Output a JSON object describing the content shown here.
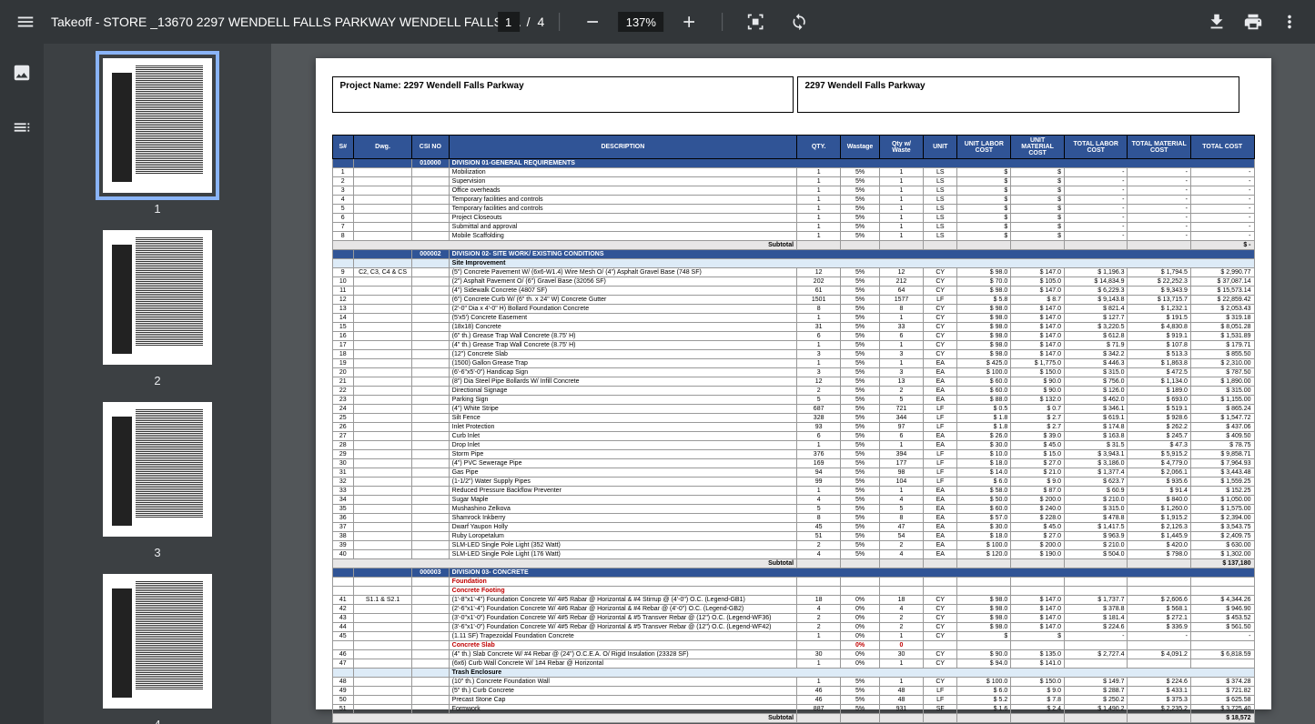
{
  "toolbar": {
    "title": "Takeoff - STORE _13670 2297 WENDELL FALLS PARKWAY WENDELL FALLS_…",
    "page_current": "1",
    "page_sep": "/",
    "page_total": "4",
    "zoom": "137%"
  },
  "thumbs": [
    {
      "num": "1",
      "selected": true
    },
    {
      "num": "2",
      "selected": false
    },
    {
      "num": "3",
      "selected": false
    },
    {
      "num": "4",
      "selected": false
    }
  ],
  "doc": {
    "project_label": "Project Name: 2297 Wendell Falls Parkway",
    "project_header": "2297 Wendell Falls Parkway",
    "headers": [
      "S#",
      "Dwg.",
      "CSI NO",
      "DESCRIPTION",
      "QTY.",
      "Wastage",
      "Qty w/ Waste",
      "UNIT",
      "UNIT LABOR COST",
      "UNIT MATERIAL COST",
      "TOTAL LABOR COST",
      "TOTAL MATERIAL COST",
      "TOTAL COST"
    ],
    "colors": {
      "header_bg": "#305496",
      "header_fg": "#ffffff",
      "sub_bg": "#ddebf7",
      "subtotal_bg": "#e7e6e6",
      "red_fg": "#c00000"
    },
    "sections": [
      {
        "type": "section",
        "csi": "010000",
        "desc": "DIVISION 01-GENERAL REQUIREMENTS"
      },
      {
        "type": "row",
        "s": "1",
        "dwg": "",
        "csi": "",
        "desc": "Mobilization",
        "qty": "1",
        "wast": "5%",
        "qtyw": "1",
        "unit": "LS",
        "ulc": "$",
        "umc": "$",
        "tlc": "-",
        "tmc": "-",
        "tc": "-"
      },
      {
        "type": "row",
        "s": "2",
        "desc": "Supervision",
        "qty": "1",
        "wast": "5%",
        "qtyw": "1",
        "unit": "LS",
        "ulc": "$",
        "umc": "$",
        "tlc": "-",
        "tmc": "-",
        "tc": "-"
      },
      {
        "type": "row",
        "s": "3",
        "desc": "Office overheads",
        "qty": "1",
        "wast": "5%",
        "qtyw": "1",
        "unit": "LS",
        "ulc": "$",
        "umc": "$",
        "tlc": "-",
        "tmc": "-",
        "tc": "-"
      },
      {
        "type": "row",
        "s": "4",
        "desc": "Temporary facilities and controls",
        "qty": "1",
        "wast": "5%",
        "qtyw": "1",
        "unit": "LS",
        "ulc": "$",
        "umc": "$",
        "tlc": "-",
        "tmc": "-",
        "tc": "-"
      },
      {
        "type": "row",
        "s": "5",
        "desc": "Temporary facilities and controls",
        "qty": "1",
        "wast": "5%",
        "qtyw": "1",
        "unit": "LS",
        "ulc": "$",
        "umc": "$",
        "tlc": "-",
        "tmc": "-",
        "tc": "-"
      },
      {
        "type": "row",
        "s": "6",
        "desc": "Project Closeouts",
        "qty": "1",
        "wast": "5%",
        "qtyw": "1",
        "unit": "LS",
        "ulc": "$",
        "umc": "$",
        "tlc": "-",
        "tmc": "-",
        "tc": "-"
      },
      {
        "type": "row",
        "s": "7",
        "desc": "Submittal and approval",
        "qty": "1",
        "wast": "5%",
        "qtyw": "1",
        "unit": "LS",
        "ulc": "$",
        "umc": "$",
        "tlc": "-",
        "tmc": "-",
        "tc": "-"
      },
      {
        "type": "row",
        "s": "8",
        "desc": "Mobile Scaffolding",
        "qty": "1",
        "wast": "5%",
        "qtyw": "1",
        "unit": "LS",
        "ulc": "$",
        "umc": "$",
        "tlc": "-",
        "tmc": "-",
        "tc": "-"
      },
      {
        "type": "subtotal",
        "label": "Subtotal",
        "tc": "$            -"
      },
      {
        "type": "section",
        "csi": "000002",
        "desc": "DIVISION 02- SITE WORK/ EXISTING CONDITIONS"
      },
      {
        "type": "subsection",
        "desc": "Site Improvement"
      },
      {
        "type": "row",
        "s": "9",
        "dwg": "C2, C3, C4 & CS",
        "desc": "(5\") Concrete Pavement W/ (6x6-W1.4) Wire Mesh O/ (4\") Asphalt Gravel Base (748 SF)",
        "qty": "12",
        "wast": "5%",
        "qtyw": "12",
        "unit": "CY",
        "ulc": "$       98.0",
        "umc": "$     147.0",
        "tlc": "$    1,196.3",
        "tmc": "$    1,794.5",
        "tc": "$    2,990.77"
      },
      {
        "type": "row",
        "s": "10",
        "desc": "(2\") Asphalt Pavement O/ (6\") Gravel Base (32056 SF)",
        "qty": "202",
        "wast": "5%",
        "qtyw": "212",
        "unit": "CY",
        "ulc": "$       70.0",
        "umc": "$     105.0",
        "tlc": "$  14,834.9",
        "tmc": "$  22,252.3",
        "tc": "$  37,087.14"
      },
      {
        "type": "row",
        "s": "11",
        "desc": "(4\") Sidewalk Concrete (4807 SF)",
        "qty": "61",
        "wast": "5%",
        "qtyw": "64",
        "unit": "CY",
        "ulc": "$       98.0",
        "umc": "$     147.0",
        "tlc": "$    6,229.3",
        "tmc": "$    9,343.9",
        "tc": "$  15,573.14"
      },
      {
        "type": "row",
        "s": "12",
        "desc": "(6\") Concrete Curb W/ (6\" th. x 24\" W) Concrete Gutter",
        "qty": "1501",
        "wast": "5%",
        "qtyw": "1577",
        "unit": "LF",
        "ulc": "$         5.8",
        "umc": "$         8.7",
        "tlc": "$    9,143.8",
        "tmc": "$  13,715.7",
        "tc": "$  22,859.42"
      },
      {
        "type": "row",
        "s": "13",
        "desc": "(2'-0\" Dia x 4'-0\" H) Bollard Foundation Concrete",
        "qty": "8",
        "wast": "5%",
        "qtyw": "8",
        "unit": "CY",
        "ulc": "$       98.0",
        "umc": "$     147.0",
        "tlc": "$       821.4",
        "tmc": "$    1,232.1",
        "tc": "$    2,053.43"
      },
      {
        "type": "row",
        "s": "14",
        "desc": "(5'x5') Concrete Easement",
        "qty": "1",
        "wast": "5%",
        "qtyw": "1",
        "unit": "CY",
        "ulc": "$       98.0",
        "umc": "$     147.0",
        "tlc": "$       127.7",
        "tmc": "$       191.5",
        "tc": "$       319.18"
      },
      {
        "type": "row",
        "s": "15",
        "desc": "(18x18) Concrete",
        "qty": "31",
        "wast": "5%",
        "qtyw": "33",
        "unit": "CY",
        "ulc": "$       98.0",
        "umc": "$     147.0",
        "tlc": "$    3,220.5",
        "tmc": "$    4,830.8",
        "tc": "$    8,051.28"
      },
      {
        "type": "row",
        "s": "16",
        "desc": "(6\" th.) Grease Trap Wall Concrete (8.75' H)",
        "qty": "6",
        "wast": "5%",
        "qtyw": "6",
        "unit": "CY",
        "ulc": "$       98.0",
        "umc": "$     147.0",
        "tlc": "$       612.8",
        "tmc": "$       919.1",
        "tc": "$    1,531.89"
      },
      {
        "type": "row",
        "s": "17",
        "desc": "(4\" th.) Grease Trap Wall Concrete (8.75' H)",
        "qty": "1",
        "wast": "5%",
        "qtyw": "1",
        "unit": "CY",
        "ulc": "$       98.0",
        "umc": "$     147.0",
        "tlc": "$         71.9",
        "tmc": "$       107.8",
        "tc": "$       179.71"
      },
      {
        "type": "row",
        "s": "18",
        "desc": "(12\") Concrete Slab",
        "qty": "3",
        "wast": "5%",
        "qtyw": "3",
        "unit": "CY",
        "ulc": "$       98.0",
        "umc": "$     147.0",
        "tlc": "$       342.2",
        "tmc": "$       513.3",
        "tc": "$       855.50"
      },
      {
        "type": "row",
        "s": "19",
        "desc": "(1500) Gallon Grease Trap",
        "qty": "1",
        "wast": "5%",
        "qtyw": "1",
        "unit": "EA",
        "ulc": "$     425.0",
        "umc": "$  1,775.0",
        "tlc": "$       446.3",
        "tmc": "$    1,863.8",
        "tc": "$    2,310.00"
      },
      {
        "type": "row",
        "s": "20",
        "desc": "(6'-6\"x5'-0\") Handicap Sign",
        "qty": "3",
        "wast": "5%",
        "qtyw": "3",
        "unit": "EA",
        "ulc": "$     100.0",
        "umc": "$     150.0",
        "tlc": "$       315.0",
        "tmc": "$       472.5",
        "tc": "$       787.50"
      },
      {
        "type": "row",
        "s": "21",
        "desc": "(8\") Dia Steel Pipe Bollards W/ Infill Concrete",
        "qty": "12",
        "wast": "5%",
        "qtyw": "13",
        "unit": "EA",
        "ulc": "$       60.0",
        "umc": "$       90.0",
        "tlc": "$       756.0",
        "tmc": "$    1,134.0",
        "tc": "$    1,890.00"
      },
      {
        "type": "row",
        "s": "22",
        "desc": "Directional Signage",
        "qty": "2",
        "wast": "5%",
        "qtyw": "2",
        "unit": "EA",
        "ulc": "$       60.0",
        "umc": "$       90.0",
        "tlc": "$       126.0",
        "tmc": "$       189.0",
        "tc": "$       315.00"
      },
      {
        "type": "row",
        "s": "23",
        "desc": "Parking Sign",
        "qty": "5",
        "wast": "5%",
        "qtyw": "5",
        "unit": "EA",
        "ulc": "$       88.0",
        "umc": "$     132.0",
        "tlc": "$       462.0",
        "tmc": "$       693.0",
        "tc": "$    1,155.00"
      },
      {
        "type": "row",
        "s": "24",
        "desc": "(4\") White Stripe",
        "qty": "687",
        "wast": "5%",
        "qtyw": "721",
        "unit": "LF",
        "ulc": "$         0.5",
        "umc": "$         0.7",
        "tlc": "$       346.1",
        "tmc": "$       519.1",
        "tc": "$       865.24"
      },
      {
        "type": "row",
        "s": "25",
        "desc": "Silt Fence",
        "qty": "328",
        "wast": "5%",
        "qtyw": "344",
        "unit": "LF",
        "ulc": "$         1.8",
        "umc": "$         2.7",
        "tlc": "$       619.1",
        "tmc": "$       928.6",
        "tc": "$    1,547.72"
      },
      {
        "type": "row",
        "s": "26",
        "desc": "Inlet Protection",
        "qty": "93",
        "wast": "5%",
        "qtyw": "97",
        "unit": "LF",
        "ulc": "$         1.8",
        "umc": "$         2.7",
        "tlc": "$       174.8",
        "tmc": "$       262.2",
        "tc": "$       437.06"
      },
      {
        "type": "row",
        "s": "27",
        "desc": "Curb Inlet",
        "qty": "6",
        "wast": "5%",
        "qtyw": "6",
        "unit": "EA",
        "ulc": "$       26.0",
        "umc": "$       39.0",
        "tlc": "$       163.8",
        "tmc": "$       245.7",
        "tc": "$       409.50"
      },
      {
        "type": "row",
        "s": "28",
        "desc": "Drop Inlet",
        "qty": "1",
        "wast": "5%",
        "qtyw": "1",
        "unit": "EA",
        "ulc": "$       30.0",
        "umc": "$       45.0",
        "tlc": "$         31.5",
        "tmc": "$         47.3",
        "tc": "$         78.75"
      },
      {
        "type": "row",
        "s": "29",
        "desc": "Storm Pipe",
        "qty": "376",
        "wast": "5%",
        "qtyw": "394",
        "unit": "LF",
        "ulc": "$       10.0",
        "umc": "$       15.0",
        "tlc": "$    3,943.1",
        "tmc": "$    5,915.2",
        "tc": "$    9,858.71"
      },
      {
        "type": "row",
        "s": "30",
        "desc": "(4\") PVC Sewerage Pipe",
        "qty": "169",
        "wast": "5%",
        "qtyw": "177",
        "unit": "LF",
        "ulc": "$       18.0",
        "umc": "$       27.0",
        "tlc": "$    3,186.0",
        "tmc": "$    4,779.0",
        "tc": "$    7,964.93"
      },
      {
        "type": "row",
        "s": "31",
        "desc": "Gas Pipe",
        "qty": "94",
        "wast": "5%",
        "qtyw": "98",
        "unit": "LF",
        "ulc": "$       14.0",
        "umc": "$       21.0",
        "tlc": "$    1,377.4",
        "tmc": "$    2,066.1",
        "tc": "$    3,443.48"
      },
      {
        "type": "row",
        "s": "32",
        "desc": "(1-1/2\") Water Supply Pipes",
        "qty": "99",
        "wast": "5%",
        "qtyw": "104",
        "unit": "LF",
        "ulc": "$         6.0",
        "umc": "$         9.0",
        "tlc": "$       623.7",
        "tmc": "$       935.6",
        "tc": "$    1,559.25"
      },
      {
        "type": "row",
        "s": "33",
        "desc": "Reduced Pressure Backflow Preventer",
        "qty": "1",
        "wast": "5%",
        "qtyw": "1",
        "unit": "EA",
        "ulc": "$       58.0",
        "umc": "$       87.0",
        "tlc": "$         60.9",
        "tmc": "$         91.4",
        "tc": "$       152.25"
      },
      {
        "type": "row",
        "s": "34",
        "desc": "Sugar Maple",
        "qty": "4",
        "wast": "5%",
        "qtyw": "4",
        "unit": "EA",
        "ulc": "$       50.0",
        "umc": "$     200.0",
        "tlc": "$       210.0",
        "tmc": "$       840.0",
        "tc": "$    1,050.00"
      },
      {
        "type": "row",
        "s": "35",
        "desc": "Mushashino Zelkova",
        "qty": "5",
        "wast": "5%",
        "qtyw": "5",
        "unit": "EA",
        "ulc": "$       60.0",
        "umc": "$     240.0",
        "tlc": "$       315.0",
        "tmc": "$    1,260.0",
        "tc": "$    1,575.00"
      },
      {
        "type": "row",
        "s": "36",
        "desc": "Shamrock Inkberry",
        "qty": "8",
        "wast": "5%",
        "qtyw": "8",
        "unit": "EA",
        "ulc": "$       57.0",
        "umc": "$     228.0",
        "tlc": "$       478.8",
        "tmc": "$    1,915.2",
        "tc": "$    2,394.00"
      },
      {
        "type": "row",
        "s": "37",
        "desc": "Dwarf Yaupon Holly",
        "qty": "45",
        "wast": "5%",
        "qtyw": "47",
        "unit": "EA",
        "ulc": "$       30.0",
        "umc": "$       45.0",
        "tlc": "$    1,417.5",
        "tmc": "$    2,126.3",
        "tc": "$    3,543.75"
      },
      {
        "type": "row",
        "s": "38",
        "desc": "Ruby Loropetalum",
        "qty": "51",
        "wast": "5%",
        "qtyw": "54",
        "unit": "EA",
        "ulc": "$       18.0",
        "umc": "$       27.0",
        "tlc": "$       963.9",
        "tmc": "$    1,445.9",
        "tc": "$    2,409.75"
      },
      {
        "type": "row",
        "s": "39",
        "desc": "SLM-LED Single Pole Light (352 Watt)",
        "qty": "2",
        "wast": "5%",
        "qtyw": "2",
        "unit": "EA",
        "ulc": "$     100.0",
        "umc": "$     200.0",
        "tlc": "$       210.0",
        "tmc": "$       420.0",
        "tc": "$       630.00"
      },
      {
        "type": "row",
        "s": "40",
        "desc": "SLM-LED Single Pole Light (176 Watt)",
        "qty": "4",
        "wast": "5%",
        "qtyw": "4",
        "unit": "EA",
        "ulc": "$     120.0",
        "umc": "$     190.0",
        "tlc": "$       504.0",
        "tmc": "$       798.0",
        "tc": "$    1,302.00"
      },
      {
        "type": "subtotal",
        "label": "Subtotal",
        "tc": "$      137,180"
      },
      {
        "type": "section",
        "csi": "000003",
        "desc": "DIVISION 03- CONCRETE"
      },
      {
        "type": "redsection",
        "desc": "Foundation"
      },
      {
        "type": "redsection",
        "desc": "Concrete Footing"
      },
      {
        "type": "row",
        "s": "41",
        "dwg": "S1.1 & S2.1",
        "desc": "(1'-8\"x1'-4\") Foundation Concrete W/ 4#5 Rabar @ Horizontal & #4 Stirrup @ (4'-0\") O.C. (Legend-GB1)",
        "qty": "18",
        "wast": "0%",
        "qtyw": "18",
        "unit": "CY",
        "ulc": "$       98.0",
        "umc": "$     147.0",
        "tlc": "$    1,737.7",
        "tmc": "$    2,606.6",
        "tc": "$    4,344.26"
      },
      {
        "type": "row",
        "s": "42",
        "desc": "(2'-6\"x1'-4\") Foundation Concrete W/ 4#6 Rabar @ Horizontal & #4 Rebar @ (4'-0\") O.C. (Legend-GB2)",
        "qty": "4",
        "wast": "0%",
        "qtyw": "4",
        "unit": "CY",
        "ulc": "$       98.0",
        "umc": "$     147.0",
        "tlc": "$       378.8",
        "tmc": "$       568.1",
        "tc": "$       946.90"
      },
      {
        "type": "row",
        "s": "43",
        "desc": "(3'-0\"x1'-0\") Foundation Concrete W/ 4#5 Rebar @ Horizontal & #5 Transver Rebar @ (12\") O.C. (Legend-WF36)",
        "qty": "2",
        "wast": "0%",
        "qtyw": "2",
        "unit": "CY",
        "ulc": "$       98.0",
        "umc": "$     147.0",
        "tlc": "$       181.4",
        "tmc": "$       272.1",
        "tc": "$       453.52"
      },
      {
        "type": "row",
        "s": "44",
        "desc": "(3'-6\"x1'-0\") Foundation Concrete W/ 4#5 Rebar @ Horizontal & #5 Transver Rebar @ (12\") O.C. (Legend-WF42)",
        "qty": "2",
        "wast": "0%",
        "qtyw": "2",
        "unit": "CY",
        "ulc": "$       98.0",
        "umc": "$     147.0",
        "tlc": "$       224.6",
        "tmc": "$       336.9",
        "tc": "$       561.50"
      },
      {
        "type": "row",
        "s": "45",
        "desc": "(1.11 SF) Trapezoidal Foundation Concrete",
        "qty": "1",
        "wast": "0%",
        "qtyw": "1",
        "unit": "CY",
        "ulc": "$",
        "umc": "$",
        "tlc": "-",
        "tmc": "-",
        "tc": "-"
      },
      {
        "type": "redsection",
        "desc": "Concrete Slab",
        "qty": "",
        "wast": "0%",
        "qtyw": "0"
      },
      {
        "type": "row",
        "s": "46",
        "desc": "(4\" th.) Slab Concrete W/ #4 Rebar @ (24\") O.C.E.A. O/ Rigid Insulation (23328 SF)",
        "qty": "30",
        "wast": "0%",
        "qtyw": "30",
        "unit": "CY",
        "ulc": "$       90.0",
        "umc": "$     135.0",
        "tlc": "$    2,727.4",
        "tmc": "$    4,091.2",
        "tc": "$    6,818.59"
      },
      {
        "type": "row",
        "s": "47",
        "desc": "(6x6) Curb Wall Concrete W/ 1#4 Rebar @ Horizontal",
        "qty": "1",
        "wast": "0%",
        "qtyw": "1",
        "unit": "CY",
        "ulc": "$       94.0",
        "umc": "$     141.0",
        "tlc": "",
        "tmc": "",
        "tc": ""
      },
      {
        "type": "subsection",
        "desc": "Trash Enclosure"
      },
      {
        "type": "row",
        "s": "48",
        "desc": "(10\" th.) Concrete Foundation Wall",
        "qty": "1",
        "wast": "5%",
        "qtyw": "1",
        "unit": "CY",
        "ulc": "$     100.0",
        "umc": "$     150.0",
        "tlc": "$       149.7",
        "tmc": "$       224.6",
        "tc": "$       374.28"
      },
      {
        "type": "row",
        "s": "49",
        "desc": "(5\" th.) Curb Concrete",
        "qty": "46",
        "wast": "5%",
        "qtyw": "48",
        "unit": "LF",
        "ulc": "$         6.0",
        "umc": "$         9.0",
        "tlc": "$       288.7",
        "tmc": "$       433.1",
        "tc": "$       721.82"
      },
      {
        "type": "row",
        "s": "50",
        "desc": "Precast Stone Cap",
        "qty": "46",
        "wast": "5%",
        "qtyw": "48",
        "unit": "LF",
        "ulc": "$         5.2",
        "umc": "$         7.8",
        "tlc": "$       250.2",
        "tmc": "$       375.3",
        "tc": "$       625.58"
      },
      {
        "type": "row",
        "s": "51",
        "desc": "Formwork",
        "qty": "887",
        "wast": "5%",
        "qtyw": "931",
        "unit": "SF",
        "ulc": "$         1.6",
        "umc": "$         2.4",
        "tlc": "$    1,490.2",
        "tmc": "$    2,235.2",
        "tc": "$    3,725.40"
      },
      {
        "type": "subtotal",
        "label": "Subtotal",
        "tc": "$        18,572"
      }
    ]
  }
}
